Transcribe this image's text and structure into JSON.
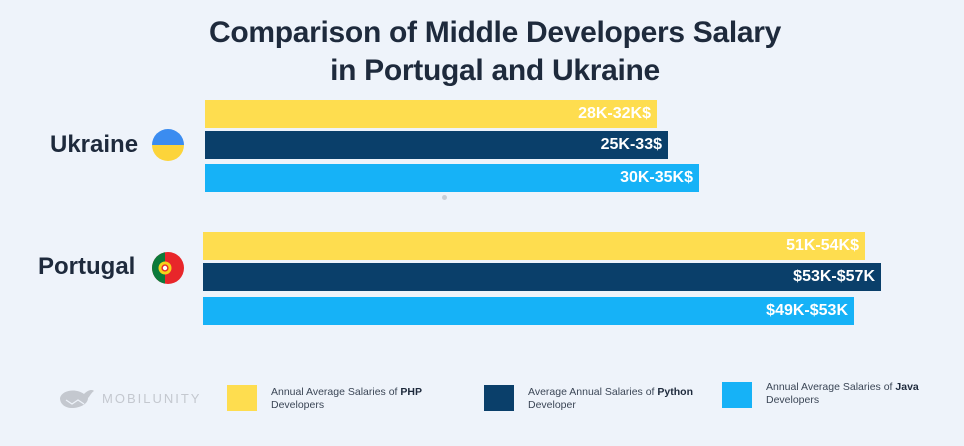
{
  "title": {
    "line1": "Comparison of Middle Developers Salary",
    "line2": "in Portugal and Ukraine"
  },
  "colors": {
    "php": "#fedd4f",
    "python": "#0a3f6a",
    "java": "#16b2f7",
    "text": "#1e2a3c",
    "background": "#eef3fa"
  },
  "chart_data": {
    "type": "bar",
    "orientation": "horizontal",
    "title": "Comparison of Middle Developers Salary in Portugal and Ukraine",
    "categories": [
      "Ukraine",
      "Portugal"
    ],
    "units": "thousand USD per year (range)",
    "series": [
      {
        "name": "PHP",
        "legend": {
          "prefix": "Annual Average Salaries of ",
          "bold": "PHP",
          "suffix": "Developers"
        },
        "labels": [
          "28K-32K$",
          "51K-54K$"
        ],
        "values": [
          [
            28,
            32
          ],
          [
            51,
            54
          ]
        ]
      },
      {
        "name": "Python",
        "legend": {
          "prefix": "Average Annual Salaries of ",
          "bold": "Python",
          "suffix": "Developer"
        },
        "labels": [
          "25K-33$",
          "$53K-$57K"
        ],
        "values": [
          [
            25,
            33
          ],
          [
            53,
            57
          ]
        ]
      },
      {
        "name": "Java",
        "legend": {
          "prefix": "Annual Average Salaries of ",
          "bold": "Java",
          "suffix": "Developers"
        },
        "labels": [
          "30K-35K$",
          "$49K-$53K"
        ],
        "values": [
          [
            30,
            35
          ],
          [
            49,
            53
          ]
        ]
      }
    ]
  },
  "logo": {
    "text": "MOBILUNITY",
    "icon": "whale-icon"
  }
}
